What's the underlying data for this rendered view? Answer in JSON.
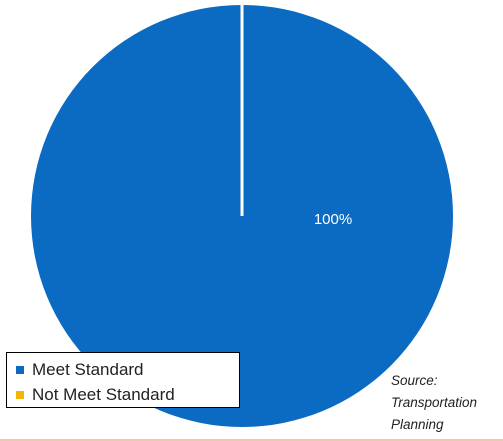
{
  "chart_data": {
    "type": "pie",
    "categories": [
      "Meet Standard",
      "Not Meet Standard"
    ],
    "values": [
      100,
      0
    ],
    "colors": [
      "#0b6bc2",
      "#f2b705"
    ],
    "data_labels": [
      "100%",
      ""
    ],
    "legend_position": "bottom-left",
    "title": ""
  },
  "source": {
    "lines": [
      "Source:",
      "Transportation",
      "Planning"
    ]
  }
}
